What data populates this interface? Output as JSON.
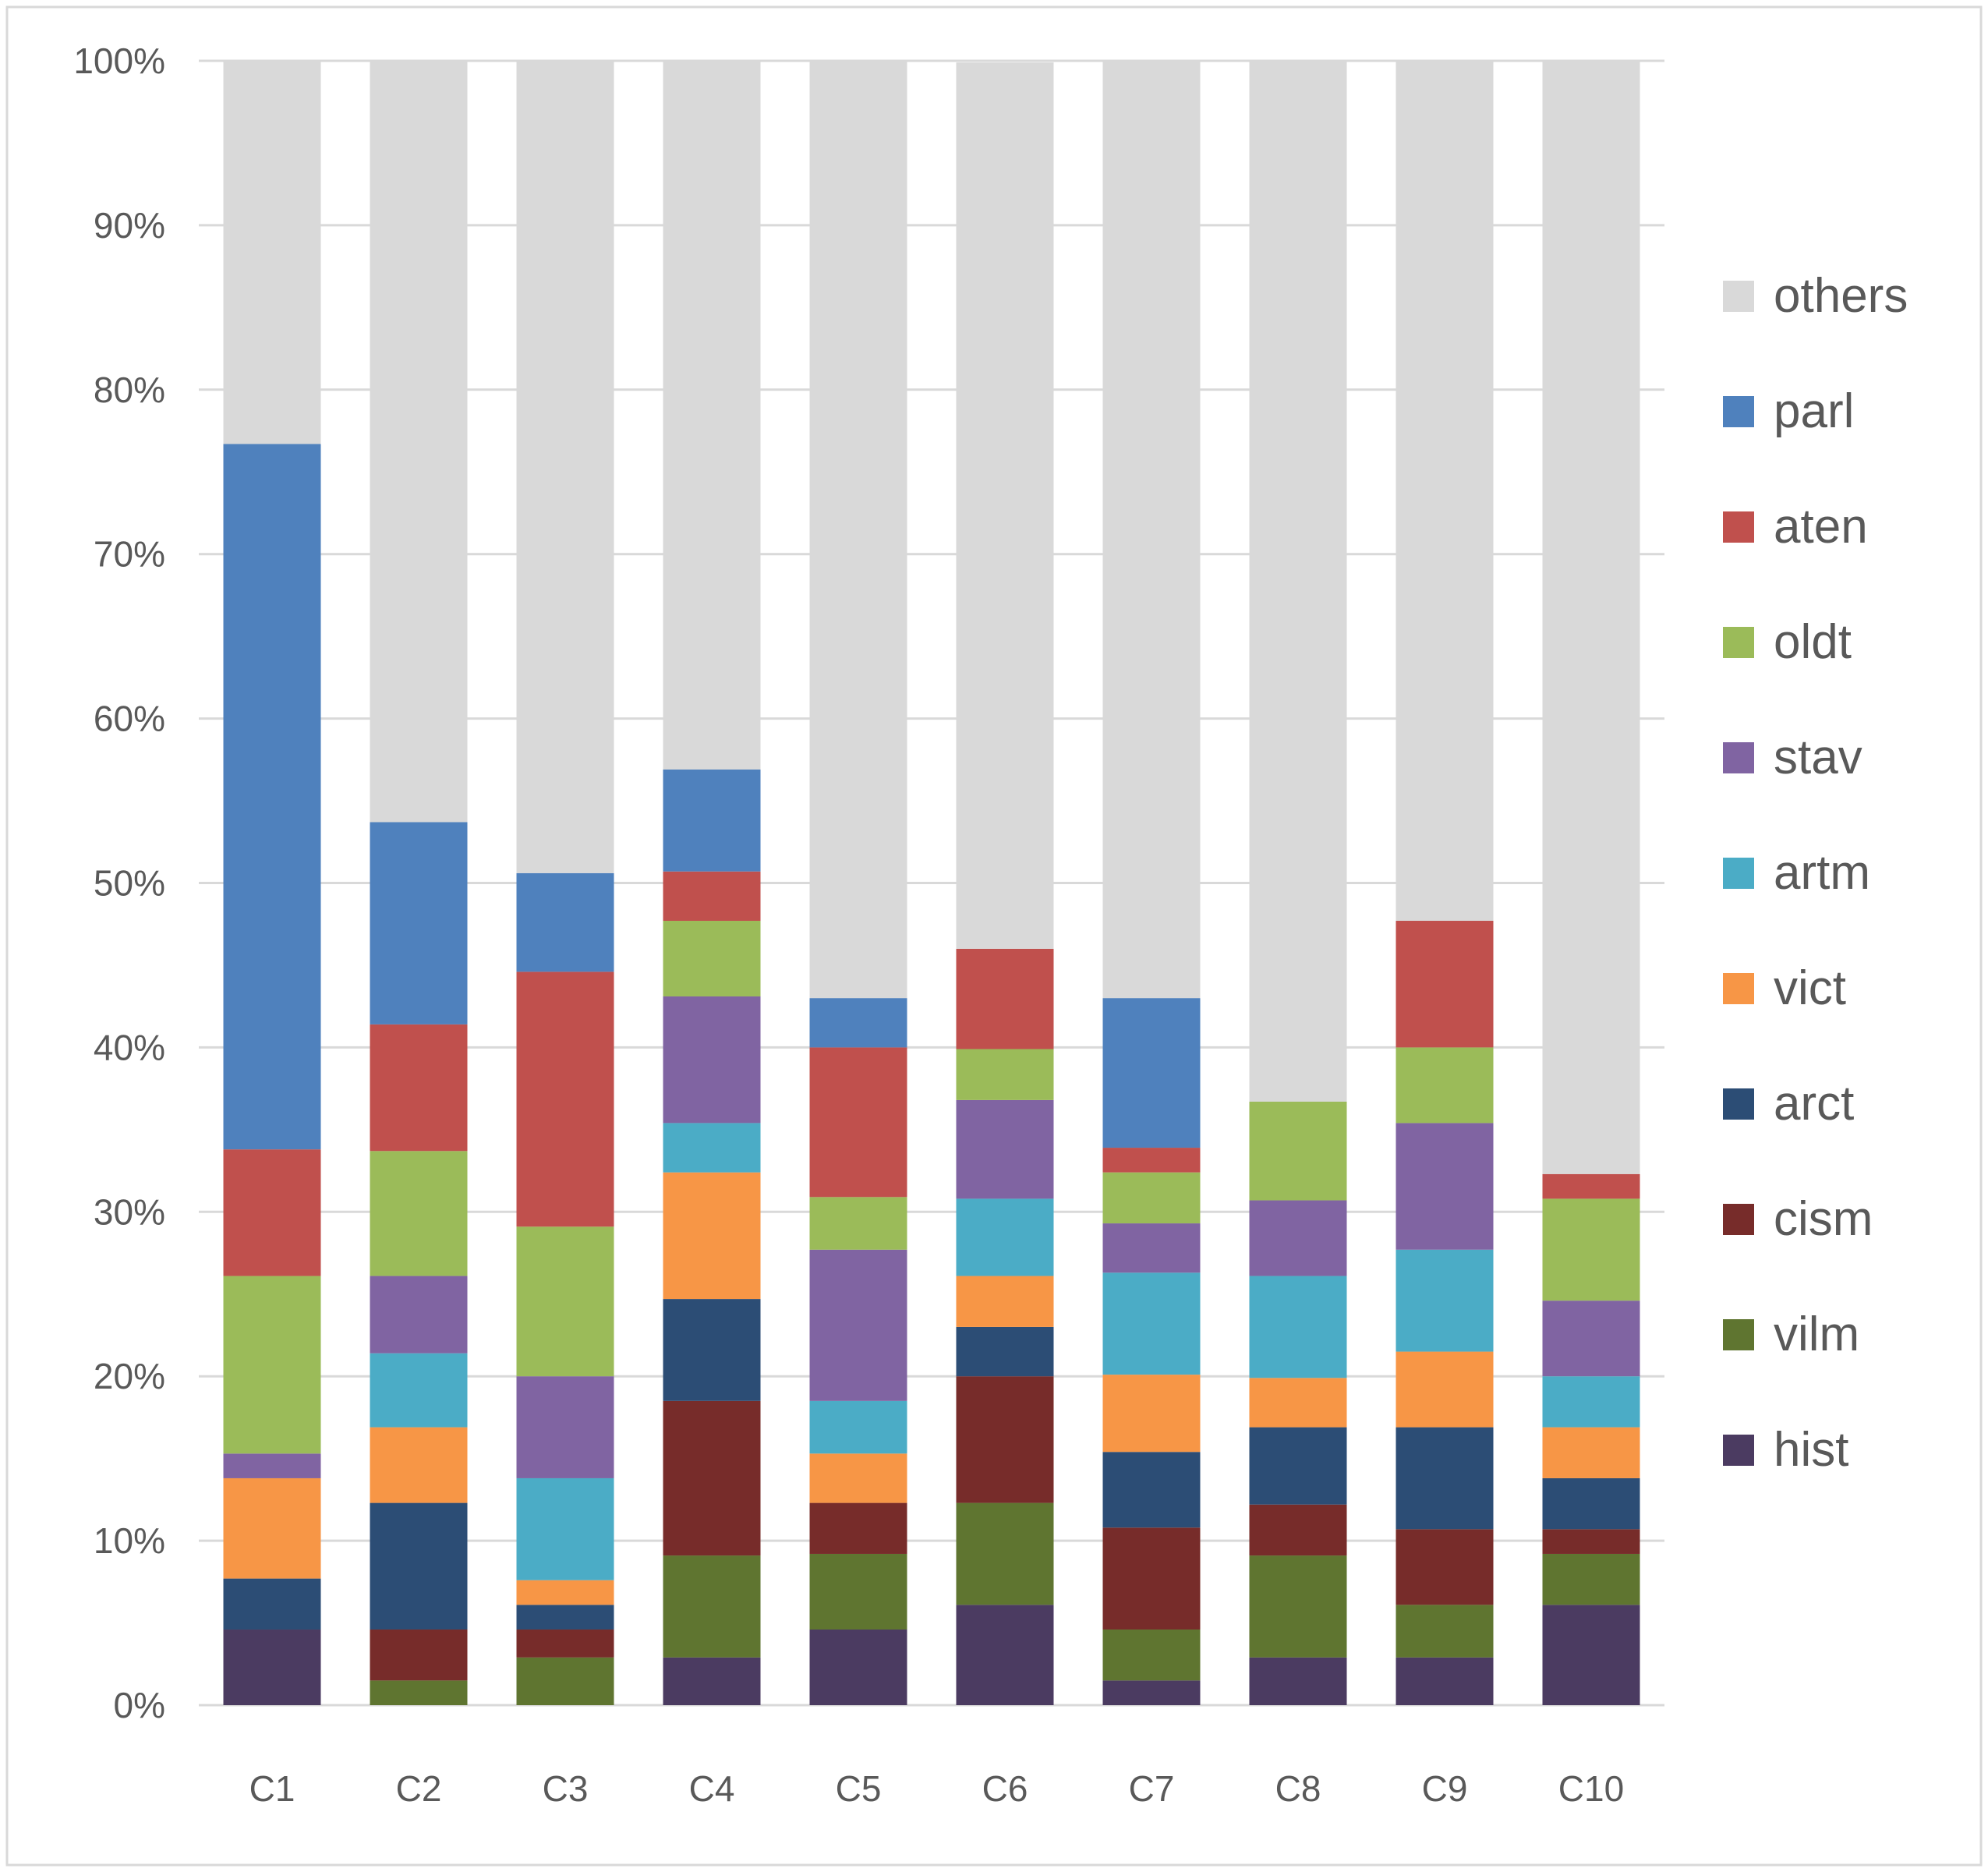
{
  "chart_data": {
    "type": "bar",
    "stacked": true,
    "percent": true,
    "categories": [
      "C1",
      "C2",
      "C3",
      "C4",
      "C5",
      "C6",
      "C7",
      "C8",
      "C9",
      "C10"
    ],
    "ylim": [
      0,
      100
    ],
    "y_ticks": [
      "0%",
      "10%",
      "20%",
      "30%",
      "40%",
      "50%",
      "60%",
      "70%",
      "80%",
      "90%",
      "100%"
    ],
    "grid": true,
    "legend_position": "right",
    "series": [
      {
        "name": "hist",
        "color": "#4b3b61",
        "values": [
          4.6,
          0,
          0,
          2.9,
          4.6,
          6.1,
          1.5,
          2.9,
          2.9,
          6.1
        ]
      },
      {
        "name": "vilm",
        "color": "#5f7530",
        "values": [
          0,
          1.5,
          2.9,
          6.2,
          4.6,
          6.2,
          3.1,
          6.2,
          3.2,
          3.1
        ]
      },
      {
        "name": "cism",
        "color": "#772c2a",
        "values": [
          0,
          3.1,
          1.7,
          9.4,
          3.1,
          7.7,
          6.2,
          3.1,
          4.6,
          1.5
        ]
      },
      {
        "name": "arct",
        "color": "#2c4d75",
        "values": [
          3.1,
          7.7,
          1.5,
          6.2,
          0,
          3.0,
          4.6,
          4.7,
          6.2,
          3.1
        ]
      },
      {
        "name": "vict",
        "color": "#f79646",
        "values": [
          6.1,
          4.6,
          1.5,
          7.7,
          3.0,
          3.1,
          4.7,
          3.0,
          4.6,
          3.1
        ]
      },
      {
        "name": "artm",
        "color": "#4bacc6",
        "values": [
          0,
          4.5,
          6.2,
          3.0,
          3.2,
          4.7,
          6.2,
          6.2,
          6.2,
          3.1
        ]
      },
      {
        "name": "stav",
        "color": "#8064a2",
        "values": [
          1.5,
          4.7,
          6.2,
          7.7,
          9.2,
          6.0,
          3.0,
          4.6,
          7.7,
          4.6
        ]
      },
      {
        "name": "oldt",
        "color": "#9bbb59",
        "values": [
          10.8,
          7.6,
          9.1,
          4.6,
          3.2,
          3.1,
          3.1,
          6.0,
          4.6,
          6.2
        ]
      },
      {
        "name": "aten",
        "color": "#c0504d",
        "values": [
          7.7,
          7.7,
          15.5,
          3.0,
          9.1,
          6.1,
          1.5,
          0,
          7.7,
          1.5
        ]
      },
      {
        "name": "parl",
        "color": "#4f81bd",
        "values": [
          42.9,
          12.3,
          6.0,
          6.2,
          3.0,
          0,
          9.1,
          0,
          0,
          0
        ]
      },
      {
        "name": "others",
        "color": "#d9d9d9",
        "values": [
          23.3,
          46.3,
          49.4,
          43.1,
          57.0,
          53.9,
          57.0,
          63.3,
          52.3,
          67.7
        ]
      }
    ]
  }
}
